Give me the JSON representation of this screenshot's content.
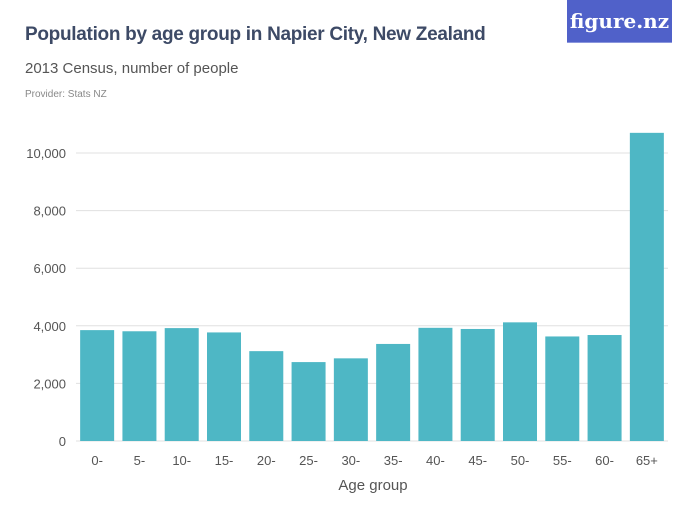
{
  "header": {
    "title": "Population by age group in Napier City, New Zealand",
    "subtitle": "2013 Census, number of people",
    "provider": "Provider: Stats NZ",
    "logo": "figure.nz"
  },
  "colors": {
    "bar": "#4eb7c5",
    "logo_bg": "#5061c9",
    "grid": "#e0e0e0"
  },
  "chart_data": {
    "type": "bar",
    "title": "Population by age group in Napier City, New Zealand",
    "subtitle": "2013 Census, number of people",
    "xlabel": "Age group",
    "ylabel": "",
    "categories": [
      "0-",
      "5-",
      "10-",
      "15-",
      "20-",
      "25-",
      "30-",
      "35-",
      "40-",
      "45-",
      "50-",
      "55-",
      "60-",
      "65+"
    ],
    "values": [
      3850,
      3810,
      3920,
      3770,
      3120,
      2740,
      2870,
      3370,
      3930,
      3890,
      4120,
      3630,
      3680,
      10700
    ],
    "ylim": [
      0,
      10000
    ],
    "yticks": [
      0,
      2000,
      4000,
      6000,
      8000,
      10000
    ],
    "ytick_labels": [
      "0",
      "2,000",
      "4,000",
      "6,000",
      "8,000",
      "10,000"
    ],
    "grid": true,
    "legend": "none"
  }
}
